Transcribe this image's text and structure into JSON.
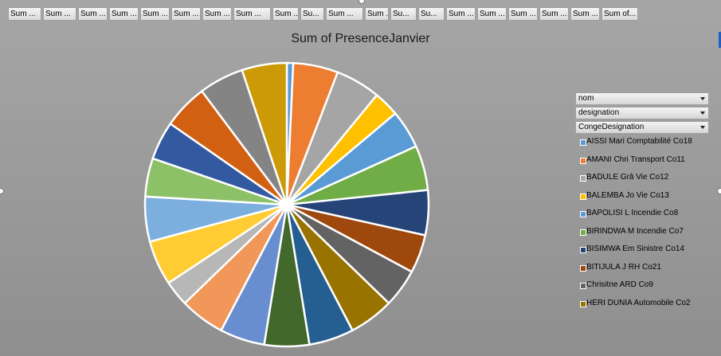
{
  "field_buttons": [
    "Sum ...",
    "Sum ...",
    "Sum ...",
    "Sum ...",
    "Sum ...",
    "Sum ...",
    "Sum ...",
    "Sum ...",
    "Sum ...",
    "Su...",
    "Sum ...",
    "Sum ...",
    "Su...",
    "Su...",
    "Sum ...",
    "Sum ...",
    "Sum ...",
    "Sum ...",
    "Sum ...",
    "Sum of..."
  ],
  "filters": [
    {
      "label": "nom"
    },
    {
      "label": "designation"
    },
    {
      "label": "CongeDesignation"
    }
  ],
  "chart_data": {
    "type": "pie",
    "title": "Sum of PresenceJanvier",
    "slices": [
      {
        "label": "AISSI Mari Comptabilité Co18",
        "value": 1,
        "color": "#5b9bd5"
      },
      {
        "label": "AMANI Chri Transport Co11",
        "value": 7,
        "color": "#ed7d31"
      },
      {
        "label": "BADULE Grâ Vie Co12",
        "value": 7,
        "color": "#a5a5a5"
      },
      {
        "label": "BALEMBA Jo Vie Co13",
        "value": 4,
        "color": "#ffc000"
      },
      {
        "label": "BAPOLISI L Incendie Co8",
        "value": 6,
        "color": "#5b9bd5"
      },
      {
        "label": "BIRINDWA M Incendie Co7",
        "value": 7,
        "color": "#70ad47"
      },
      {
        "label": "BISIMWA Em Sinistre Co14",
        "value": 7,
        "color": "#264478"
      },
      {
        "label": "BITIJULA J RH Co21",
        "value": 6,
        "color": "#9e480e"
      },
      {
        "label": "Chrisitne  ARD Co9",
        "value": 6,
        "color": "#636363"
      },
      {
        "label": "HERI DUNIA Automobile Co2",
        "value": 7,
        "color": "#997300"
      },
      {
        "label": "",
        "value": 7,
        "color": "#255e91"
      },
      {
        "label": "",
        "value": 7,
        "color": "#43682b"
      },
      {
        "label": "",
        "value": 7,
        "color": "#698ed0"
      },
      {
        "label": "",
        "value": 7,
        "color": "#f1975a"
      },
      {
        "label": "",
        "value": 4,
        "color": "#b7b7b7"
      },
      {
        "label": "",
        "value": 7,
        "color": "#ffcd33"
      },
      {
        "label": "",
        "value": 7,
        "color": "#7cafdd"
      },
      {
        "label": "",
        "value": 6,
        "color": "#8cc168"
      },
      {
        "label": "",
        "value": 6,
        "color": "#335aa1"
      },
      {
        "label": "",
        "value": 7,
        "color": "#d26012"
      },
      {
        "label": "",
        "value": 7,
        "color": "#848484"
      },
      {
        "label": "",
        "value": 7,
        "color": "#cc9a06"
      }
    ],
    "legend_position": "right"
  }
}
